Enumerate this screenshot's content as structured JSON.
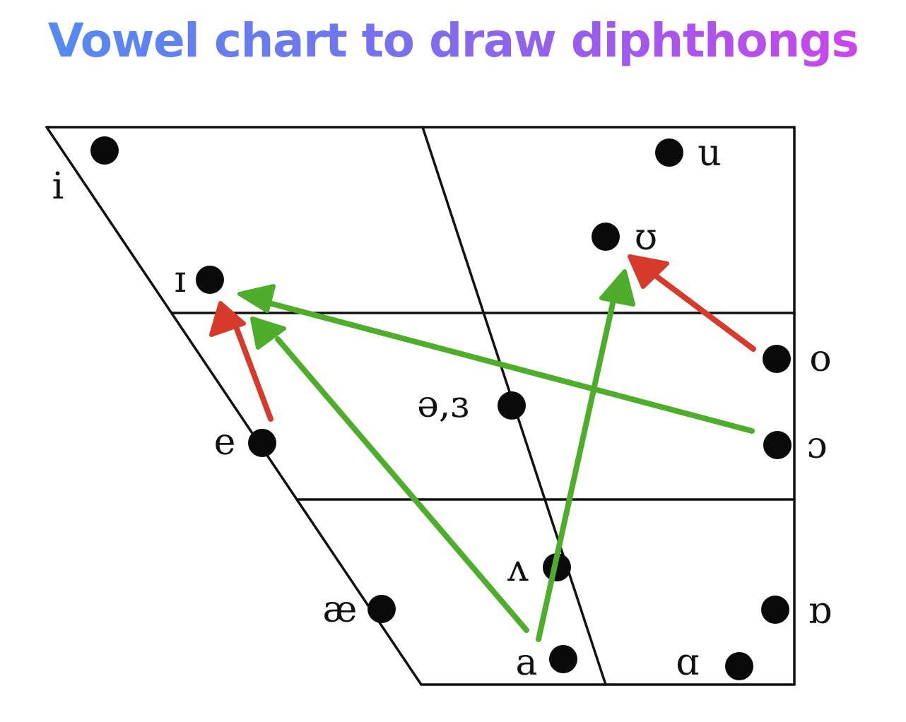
{
  "title": "Vowel chart to draw diphthongs",
  "vowels": [
    {
      "id": "i",
      "symbol": "i"
    },
    {
      "id": "u",
      "symbol": "u"
    },
    {
      "id": "upsilon",
      "symbol": "ʊ"
    },
    {
      "id": "small-cap-i",
      "symbol": "ɪ"
    },
    {
      "id": "o",
      "symbol": "o"
    },
    {
      "id": "schwa",
      "symbol": "ə,ɜ"
    },
    {
      "id": "e",
      "symbol": "e"
    },
    {
      "id": "open-o",
      "symbol": "ɔ"
    },
    {
      "id": "wedge",
      "symbol": "ʌ"
    },
    {
      "id": "ash",
      "symbol": "æ"
    },
    {
      "id": "turned-alpha",
      "symbol": "ɒ"
    },
    {
      "id": "a",
      "symbol": "a"
    },
    {
      "id": "alpha",
      "symbol": "ɑ"
    }
  ],
  "diphthong_arrows": [
    {
      "from": "e",
      "to": "small-cap-i",
      "color": "#d63a2a"
    },
    {
      "from": "o",
      "to": "upsilon",
      "color": "#d63a2a"
    },
    {
      "from": "open-o",
      "to": "small-cap-i",
      "color": "#4fad2c"
    },
    {
      "from": "a",
      "to": "small-cap-i",
      "color": "#4fad2c"
    },
    {
      "from": "a",
      "to": "upsilon",
      "color": "#4fad2c"
    }
  ],
  "colors": {
    "red_arrow": "#d63a2a",
    "green_arrow": "#4fad2c",
    "ink": "#111111"
  }
}
